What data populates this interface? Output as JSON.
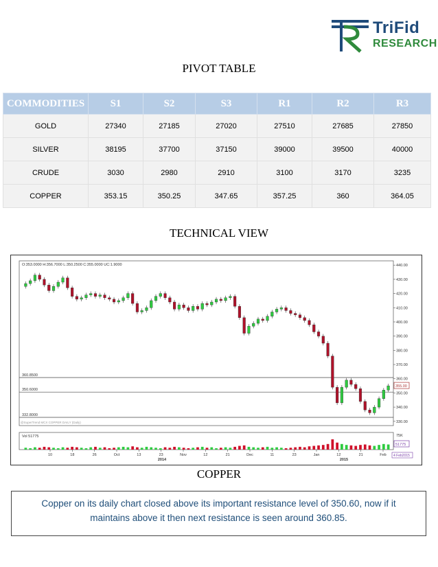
{
  "logo": {
    "line1": "TriFid",
    "line2": "RESEARCH"
  },
  "pivot_title": "PIVOT TABLE",
  "table": {
    "headers": [
      "COMMODITIES",
      "S1",
      "S2",
      "S3",
      "R1",
      "R2",
      "R3"
    ],
    "rows": [
      [
        "GOLD",
        "27340",
        "27185",
        "27020",
        "27510",
        "27685",
        "27850"
      ],
      [
        "SILVER",
        "38195",
        "37700",
        "37150",
        "39000",
        "39500",
        "40000"
      ],
      [
        "CRUDE",
        "3030",
        "2980",
        "2910",
        "3100",
        "3170",
        "3235"
      ],
      [
        "COPPER",
        "353.15",
        "350.25",
        "347.65",
        "357.25",
        "360",
        "364.05"
      ]
    ]
  },
  "technical_title": "TECHNICAL VIEW",
  "chart_caption": "COPPER",
  "comment": "Copper on its daily chart closed above its important resistance level of 350.60, now if it maintains above it then next resistance is seen around 360.85.",
  "chart_data": {
    "type": "candlestick",
    "ohlc_header": "O:353.0000  H:356.7000  L:350.2500  C:355.0000  UC:1.9000",
    "volume_header": "Vol 51775",
    "y_ticks": [
      "440.00",
      "430.00",
      "420.00",
      "410.00",
      "400.00",
      "390.00",
      "380.00",
      "370.00",
      "360.00",
      "350.00",
      "340.00",
      "330.00"
    ],
    "ylim": [
      327,
      443
    ],
    "levels": [
      {
        "label": "360.8500",
        "value": 360.85
      },
      {
        "label": "350.6000",
        "value": 350.6
      },
      {
        "label": "332.8000",
        "value": 332.8
      }
    ],
    "last_price": "355.00",
    "last_volume": "51775",
    "vol_scale": "75K",
    "x_ticks": [
      "10",
      "18",
      "26",
      "Oct",
      "13",
      "23",
      "Nov",
      "12",
      "21",
      "Dec",
      "11",
      "23",
      "Jan",
      "12",
      "21",
      "Feb"
    ],
    "year_labels": [
      "2014",
      "2015"
    ],
    "date_label": "4 Feb2015",
    "symbol_label": "@SuperTrend MCX COPPER DAILY (Daily)",
    "closes": [
      427,
      429,
      433,
      430,
      426,
      422,
      425,
      428,
      431,
      424,
      418,
      416,
      417,
      419,
      420,
      418,
      419,
      417,
      416,
      414,
      415,
      417,
      420,
      413,
      407,
      408,
      410,
      415,
      418,
      420,
      417,
      414,
      409,
      412,
      410,
      408,
      411,
      409,
      413,
      412,
      414,
      416,
      415,
      417,
      418,
      411,
      403,
      392,
      397,
      399,
      402,
      401,
      404,
      407,
      409,
      410,
      408,
      406,
      405,
      403,
      401,
      398,
      393,
      390,
      385,
      376,
      354,
      343,
      354,
      359,
      356,
      353,
      344,
      338,
      336,
      340,
      346,
      352,
      355
    ],
    "volumes": [
      4,
      3,
      5,
      4,
      6,
      5,
      4,
      3,
      5,
      4,
      6,
      5,
      4,
      3,
      5,
      6,
      4,
      5,
      3,
      4,
      5,
      6,
      5,
      7,
      5,
      4,
      6,
      5,
      4,
      3,
      5,
      4,
      6,
      5,
      4,
      3,
      4,
      5,
      6,
      4,
      5,
      3,
      4,
      5,
      4,
      6,
      8,
      9,
      6,
      5,
      4,
      5,
      6,
      4,
      5,
      4,
      3,
      4,
      5,
      6,
      5,
      7,
      8,
      9,
      10,
      12,
      22,
      15,
      12,
      10,
      9,
      8,
      10,
      11,
      9,
      8,
      10,
      12,
      11
    ]
  }
}
